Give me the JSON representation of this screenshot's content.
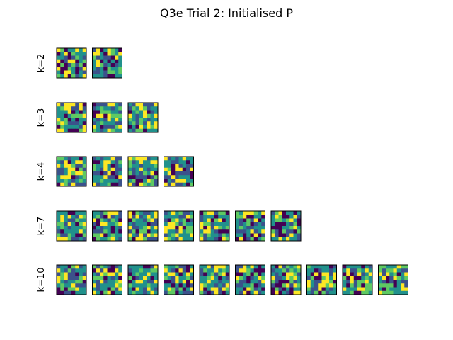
{
  "figure": {
    "title": "Q3e Trial 2: Initialised P"
  },
  "chart_data": {
    "type": "heatmap",
    "title": "Q3e Trial 2: Initialised P",
    "colormap": "viridis",
    "grid": false,
    "grid_size": [
      8,
      8
    ],
    "rows": [
      {
        "label": "k=2",
        "k": 2,
        "panels": 2
      },
      {
        "label": "k=3",
        "k": 3,
        "panels": 3
      },
      {
        "label": "k=4",
        "k": 4,
        "panels": 4
      },
      {
        "label": "k=7",
        "k": 7,
        "panels": 7
      },
      {
        "label": "k=10",
        "k": 10,
        "panels": 10
      }
    ],
    "palette": [
      "#440154",
      "#3b528b",
      "#21918c",
      "#5ec962",
      "#fde725"
    ]
  }
}
